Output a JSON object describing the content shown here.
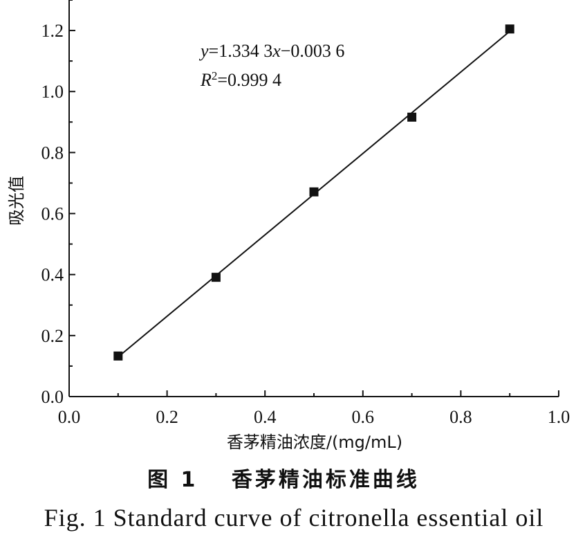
{
  "chart_data": {
    "type": "scatter",
    "xlabel": "香茅精油浓度/(mg/mL)",
    "ylabel": "吸光值",
    "xlim": [
      0.0,
      1.0
    ],
    "ylim": [
      0.0,
      1.3
    ],
    "x_ticks": [
      "0.0",
      "0.2",
      "0.4",
      "0.6",
      "0.8",
      "1.0"
    ],
    "y_ticks": [
      "0.0",
      "0.2",
      "0.4",
      "0.6",
      "0.8",
      "1.0",
      "1.2"
    ],
    "x_tick_values": [
      0.0,
      0.2,
      0.4,
      0.6,
      0.8,
      1.0
    ],
    "y_tick_values": [
      0.0,
      0.2,
      0.4,
      0.6,
      0.8,
      1.0,
      1.2
    ],
    "x": [
      0.1,
      0.3,
      0.5,
      0.7,
      0.9
    ],
    "y": [
      0.133,
      0.391,
      0.671,
      0.916,
      1.205
    ],
    "fit_line": {
      "slope": 1.3343,
      "intercept": -0.0036
    },
    "equation": {
      "y": "y",
      "rhs_a": "=1.334 3",
      "x": "x",
      "rhs_b": "−0.003 6"
    },
    "r_squared": {
      "r": "R",
      "sup": "2",
      "rest": "=0.999 4"
    },
    "grid": false,
    "colors": {
      "marker": "#111111",
      "line": "#111111"
    }
  },
  "caption": {
    "cn": "图 1　 香茅精油标准曲线",
    "en": "Fig. 1 Standard curve of citronella essential oil"
  }
}
